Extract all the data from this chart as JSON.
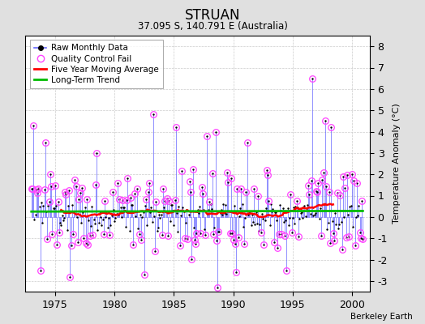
{
  "title": "STRUAN",
  "subtitle": "37.095 S, 140.791 E (Australia)",
  "credit": "Berkeley Earth",
  "ylabel": "Temperature Anomaly (°C)",
  "xlim": [
    1972.5,
    2001.5
  ],
  "ylim": [
    -3.5,
    8.5
  ],
  "yticks": [
    -3,
    -2,
    -1,
    0,
    1,
    2,
    3,
    4,
    5,
    6,
    7,
    8
  ],
  "xticks": [
    1975,
    1980,
    1985,
    1990,
    1995,
    2000
  ],
  "raw_color": "#4444ff",
  "raw_line_color": "#6666ff",
  "qc_color": "#ff44ff",
  "moving_avg_color": "#ff0000",
  "trend_color": "#00bb00",
  "background_color": "#e0e0e0",
  "plot_bg_color": "#ffffff",
  "seed": 137,
  "n_months": 336,
  "start_year": 1973,
  "start_month": 1
}
